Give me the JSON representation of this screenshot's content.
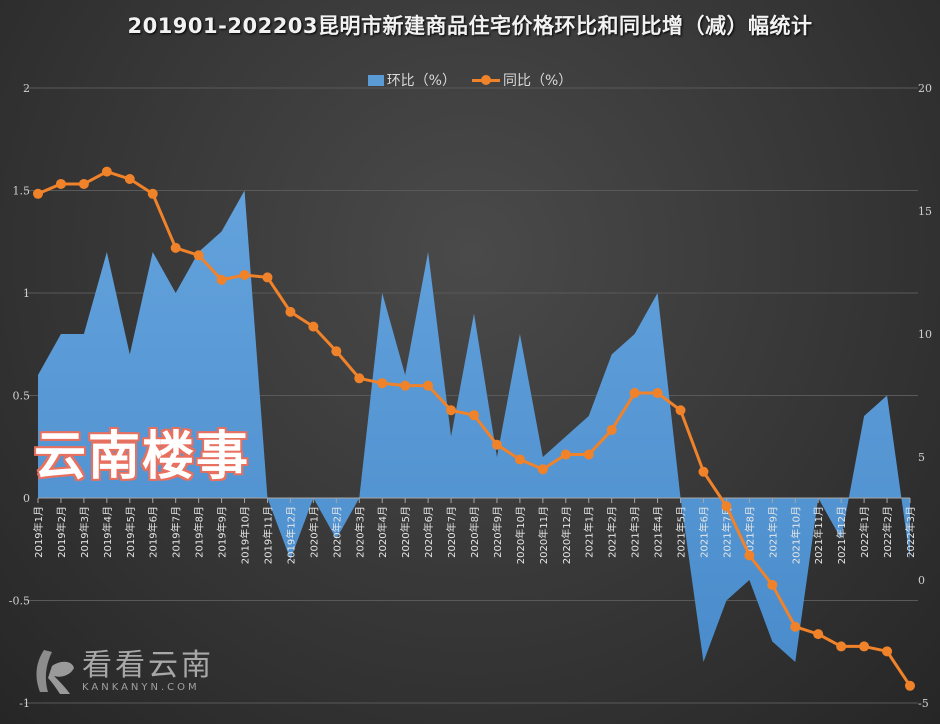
{
  "title": "201901-202203昆明市新建商品住宅价格环比和同比增（减）幅统计",
  "legend": {
    "series1": "环比（%）",
    "series2": "同比（%）"
  },
  "colors": {
    "area": "#5b9bd5",
    "line": "#f0822a",
    "background": "#3a3a3a",
    "grid": "#595959"
  },
  "watermarks": {
    "overlay": "云南楼事",
    "logo_cn": "看看云南",
    "logo_en": "KANKANYN.COM"
  },
  "chart_data": {
    "type": "area+line",
    "title": "201901-202203昆明市新建商品住宅价格环比和同比增（减）幅统计",
    "xlabel": "",
    "ylabel_left": "环比（%）",
    "ylabel_right": "同比（%）",
    "ylim_left": [
      -1,
      2
    ],
    "ylim_right": [
      -5,
      20
    ],
    "yticks_left": [
      "-1",
      "-0.5",
      "0",
      "0.5",
      "1",
      "1.5",
      "2"
    ],
    "yticks_right": [
      "-5",
      "0",
      "5",
      "10",
      "15",
      "20"
    ],
    "grid": true,
    "legend_position": "top",
    "categories": [
      "2019年1月",
      "2019年2月",
      "2019年3月",
      "2019年4月",
      "2019年5月",
      "2019年6月",
      "2019年7月",
      "2019年8月",
      "2019年9月",
      "2019年10月",
      "2019年11月",
      "2019年12月",
      "2020年1月",
      "2020年2月",
      "2020年3月",
      "2020年4月",
      "2020年5月",
      "2020年6月",
      "2020年7月",
      "2020年8月",
      "2020年9月",
      "2020年10月",
      "2020年11月",
      "2020年12月",
      "2021年1月",
      "2021年2月",
      "2021年3月",
      "2021年4月",
      "2021年5月",
      "2021年6月",
      "2021年7月",
      "2021年8月",
      "2021年9月",
      "2021年10月",
      "2021年11月",
      "2021年12月",
      "2022年1月",
      "2022年2月",
      "2022年3月"
    ],
    "series": [
      {
        "name": "环比（%）",
        "type": "area",
        "axis": "left",
        "values": [
          0.6,
          0.8,
          0.8,
          1.2,
          0.7,
          1.2,
          1.0,
          1.2,
          1.3,
          1.5,
          0,
          -0.3,
          0,
          -0.2,
          0,
          1.0,
          0.6,
          1.2,
          0.3,
          0.9,
          0.2,
          0.8,
          0.2,
          0.3,
          0.4,
          0.7,
          0.8,
          1.0,
          0,
          -0.8,
          -0.5,
          -0.4,
          -0.7,
          -0.8,
          0,
          -0.2,
          0.4,
          0.5,
          -0.3
        ]
      },
      {
        "name": "同比（%）",
        "type": "line",
        "axis": "right",
        "values": [
          15.7,
          16.1,
          16.1,
          16.6,
          16.3,
          15.7,
          13.5,
          13.2,
          12.2,
          12.4,
          12.3,
          10.9,
          10.3,
          9.3,
          8.2,
          8.0,
          7.9,
          7.9,
          6.9,
          6.7,
          5.5,
          4.9,
          4.5,
          5.1,
          5.1,
          6.1,
          7.6,
          7.6,
          6.9,
          4.4,
          3.0,
          1.0,
          -0.2,
          -1.9,
          -2.2,
          -2.7,
          -2.7,
          -2.9,
          -4.3
        ]
      }
    ]
  }
}
